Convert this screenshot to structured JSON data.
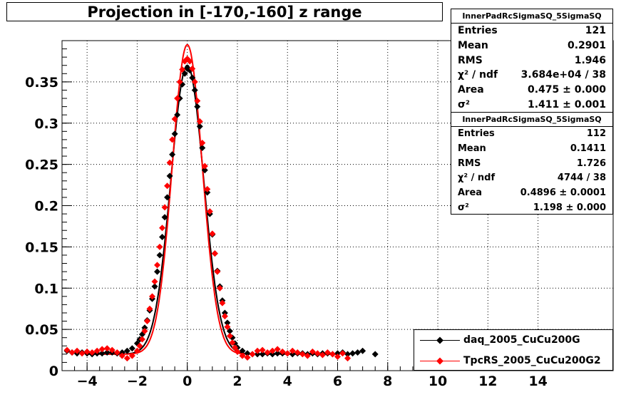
{
  "title": "Projection in [-170,-160] z range",
  "stats": [
    {
      "name": "InnerPadRcSigmaSQ_5SigmaSQ",
      "rows": [
        {
          "key": "Entries",
          "value": "121"
        },
        {
          "key": "Mean",
          "value": "0.2901"
        },
        {
          "key": "RMS",
          "value": "1.946"
        },
        {
          "key": "χ² / ndf",
          "value": "3.684e+04 / 38"
        },
        {
          "key": "Area",
          "value": "0.475 ± 0.000"
        },
        {
          "key": "σ²",
          "value": "1.411 ± 0.001"
        }
      ]
    },
    {
      "name": "InnerPadRcSigmaSQ_5SigmaSQ",
      "rows": [
        {
          "key": "Entries",
          "value": "112"
        },
        {
          "key": "Mean",
          "value": "0.1411"
        },
        {
          "key": "RMS",
          "value": "1.726"
        },
        {
          "key": "χ² / ndf",
          "value": "4744 / 38"
        },
        {
          "key": "Area",
          "value": "0.4896 ± 0.0001"
        },
        {
          "key": "σ²",
          "value": "1.198 ± 0.000"
        }
      ]
    }
  ],
  "chart_data": {
    "type": "scatter",
    "title": "Projection in [-170,-160] z range",
    "xlim": [
      -5,
      17
    ],
    "ylim": [
      0,
      0.4
    ],
    "x_ticks": [
      -4,
      -2,
      0,
      2,
      4,
      6,
      8,
      10,
      12,
      14
    ],
    "y_ticks": [
      0,
      0.05,
      0.1,
      0.15,
      0.2,
      0.25,
      0.3,
      0.35
    ],
    "y_tick_labels": [
      "0",
      "0.05",
      "0.1",
      "0.15",
      "0.2",
      "0.25",
      "0.3",
      "0.35"
    ],
    "grid": true,
    "legend_position": "bottom-right",
    "series": [
      {
        "name": "daq_2005_CuCu200G",
        "color": "#000000",
        "marker": "diamond",
        "x": [
          -4.8,
          -4.6,
          -4.4,
          -4.2,
          -4.0,
          -3.8,
          -3.6,
          -3.4,
          -3.2,
          -3.0,
          -2.8,
          -2.6,
          -2.4,
          -2.2,
          -2.0,
          -1.9,
          -1.8,
          -1.7,
          -1.6,
          -1.5,
          -1.4,
          -1.3,
          -1.2,
          -1.1,
          -1.0,
          -0.9,
          -0.8,
          -0.7,
          -0.6,
          -0.5,
          -0.4,
          -0.3,
          -0.2,
          -0.1,
          0.0,
          0.1,
          0.2,
          0.3,
          0.4,
          0.5,
          0.6,
          0.7,
          0.8,
          0.9,
          1.0,
          1.1,
          1.2,
          1.3,
          1.4,
          1.5,
          1.6,
          1.7,
          1.8,
          1.9,
          2.0,
          2.2,
          2.4,
          2.6,
          2.8,
          3.0,
          3.2,
          3.4,
          3.6,
          3.8,
          4.0,
          4.2,
          4.4,
          4.6,
          4.8,
          5.0,
          5.2,
          5.4,
          5.6,
          5.8,
          6.0,
          6.2,
          6.4,
          6.6,
          6.8,
          7.0,
          7.5
        ],
        "y": [
          0.024,
          0.022,
          0.021,
          0.022,
          0.021,
          0.02,
          0.021,
          0.021,
          0.022,
          0.022,
          0.021,
          0.022,
          0.024,
          0.027,
          0.033,
          0.038,
          0.044,
          0.052,
          0.061,
          0.073,
          0.087,
          0.102,
          0.12,
          0.14,
          0.162,
          0.186,
          0.21,
          0.236,
          0.262,
          0.287,
          0.31,
          0.33,
          0.347,
          0.36,
          0.366,
          0.364,
          0.355,
          0.34,
          0.32,
          0.296,
          0.27,
          0.243,
          0.216,
          0.19,
          0.165,
          0.142,
          0.121,
          0.102,
          0.085,
          0.07,
          0.058,
          0.048,
          0.04,
          0.033,
          0.028,
          0.024,
          0.021,
          0.02,
          0.02,
          0.02,
          0.021,
          0.02,
          0.021,
          0.021,
          0.021,
          0.02,
          0.021,
          0.021,
          0.02,
          0.021,
          0.02,
          0.021,
          0.021,
          0.02,
          0.021,
          0.022,
          0.02,
          0.021,
          0.022,
          0.024,
          0.02
        ]
      },
      {
        "name": "TpcRS_2005_CuCu200G2",
        "color": "#ff0000",
        "marker": "diamond",
        "x": [
          -4.8,
          -4.6,
          -4.4,
          -4.2,
          -4.0,
          -3.8,
          -3.6,
          -3.4,
          -3.2,
          -3.0,
          -2.8,
          -2.6,
          -2.4,
          -2.2,
          -2.0,
          -1.9,
          -1.8,
          -1.7,
          -1.6,
          -1.5,
          -1.4,
          -1.3,
          -1.2,
          -1.1,
          -1.0,
          -0.9,
          -0.8,
          -0.7,
          -0.6,
          -0.5,
          -0.4,
          -0.3,
          -0.2,
          -0.1,
          0.0,
          0.1,
          0.2,
          0.3,
          0.4,
          0.5,
          0.6,
          0.7,
          0.8,
          0.9,
          1.0,
          1.1,
          1.2,
          1.3,
          1.4,
          1.5,
          1.6,
          1.7,
          1.8,
          1.9,
          2.0,
          2.2,
          2.4,
          2.6,
          2.8,
          3.0,
          3.2,
          3.4,
          3.6,
          3.8,
          4.0,
          4.2,
          4.4,
          4.6,
          4.8,
          5.0,
          5.2,
          5.4,
          5.6,
          5.8,
          6.0,
          6.2,
          6.4
        ],
        "y": [
          0.025,
          0.022,
          0.024,
          0.021,
          0.023,
          0.022,
          0.024,
          0.026,
          0.027,
          0.025,
          0.022,
          0.018,
          0.015,
          0.018,
          0.024,
          0.03,
          0.038,
          0.048,
          0.06,
          0.075,
          0.09,
          0.108,
          0.128,
          0.15,
          0.173,
          0.198,
          0.224,
          0.252,
          0.28,
          0.305,
          0.33,
          0.35,
          0.365,
          0.375,
          0.378,
          0.375,
          0.366,
          0.35,
          0.327,
          0.302,
          0.276,
          0.248,
          0.22,
          0.193,
          0.166,
          0.142,
          0.12,
          0.1,
          0.082,
          0.066,
          0.053,
          0.042,
          0.034,
          0.028,
          0.023,
          0.018,
          0.016,
          0.02,
          0.024,
          0.025,
          0.022,
          0.024,
          0.026,
          0.023,
          0.021,
          0.024,
          0.022,
          0.02,
          0.018,
          0.023,
          0.021,
          0.019,
          0.022,
          0.02,
          0.017,
          0.021,
          0.015
        ]
      }
    ],
    "fits": [
      {
        "series": "daq_2005_CuCu200G",
        "color": "#000000",
        "model": "gaussian+constant",
        "sigma2": 1.411,
        "peak": 0.37,
        "baseline": 0.02
      },
      {
        "series": "TpcRS_2005_CuCu200G2",
        "color": "#ff0000",
        "model": "gaussian+constant",
        "sigma2": 1.198,
        "peak": 0.395,
        "baseline": 0.02
      }
    ]
  }
}
